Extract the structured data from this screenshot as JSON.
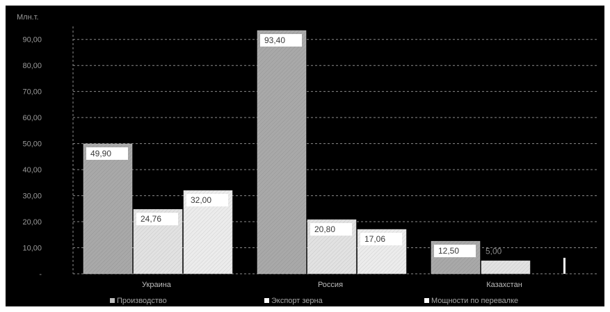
{
  "chart_data": {
    "type": "bar",
    "unit_label": "Млн.т.",
    "categories": [
      "Украина",
      "Россия",
      "Казахстан"
    ],
    "series": [
      {
        "name": "Производство",
        "values": [
          49.9,
          93.4,
          12.5
        ],
        "labels": [
          "49,90",
          "93,40",
          "12,50"
        ],
        "color": "#a9a9a9"
      },
      {
        "name": "Экспорт зерна",
        "values": [
          24.76,
          20.8,
          5.0
        ],
        "labels": [
          "24,76",
          "20,80",
          "5,00"
        ],
        "color": "#e2e2e2"
      },
      {
        "name": "Мощности по перевалке",
        "values": [
          32.0,
          17.06,
          null
        ],
        "labels": [
          "32,00",
          "17,06",
          ""
        ],
        "color": "#ececec"
      }
    ],
    "y_ticks": [
      "-",
      "10,00",
      "20,00",
      "30,00",
      "40,00",
      "50,00",
      "60,00",
      "70,00",
      "80,00",
      "90,00"
    ],
    "ylim": [
      0,
      95
    ],
    "grid": true,
    "legend_position": "bottom"
  }
}
